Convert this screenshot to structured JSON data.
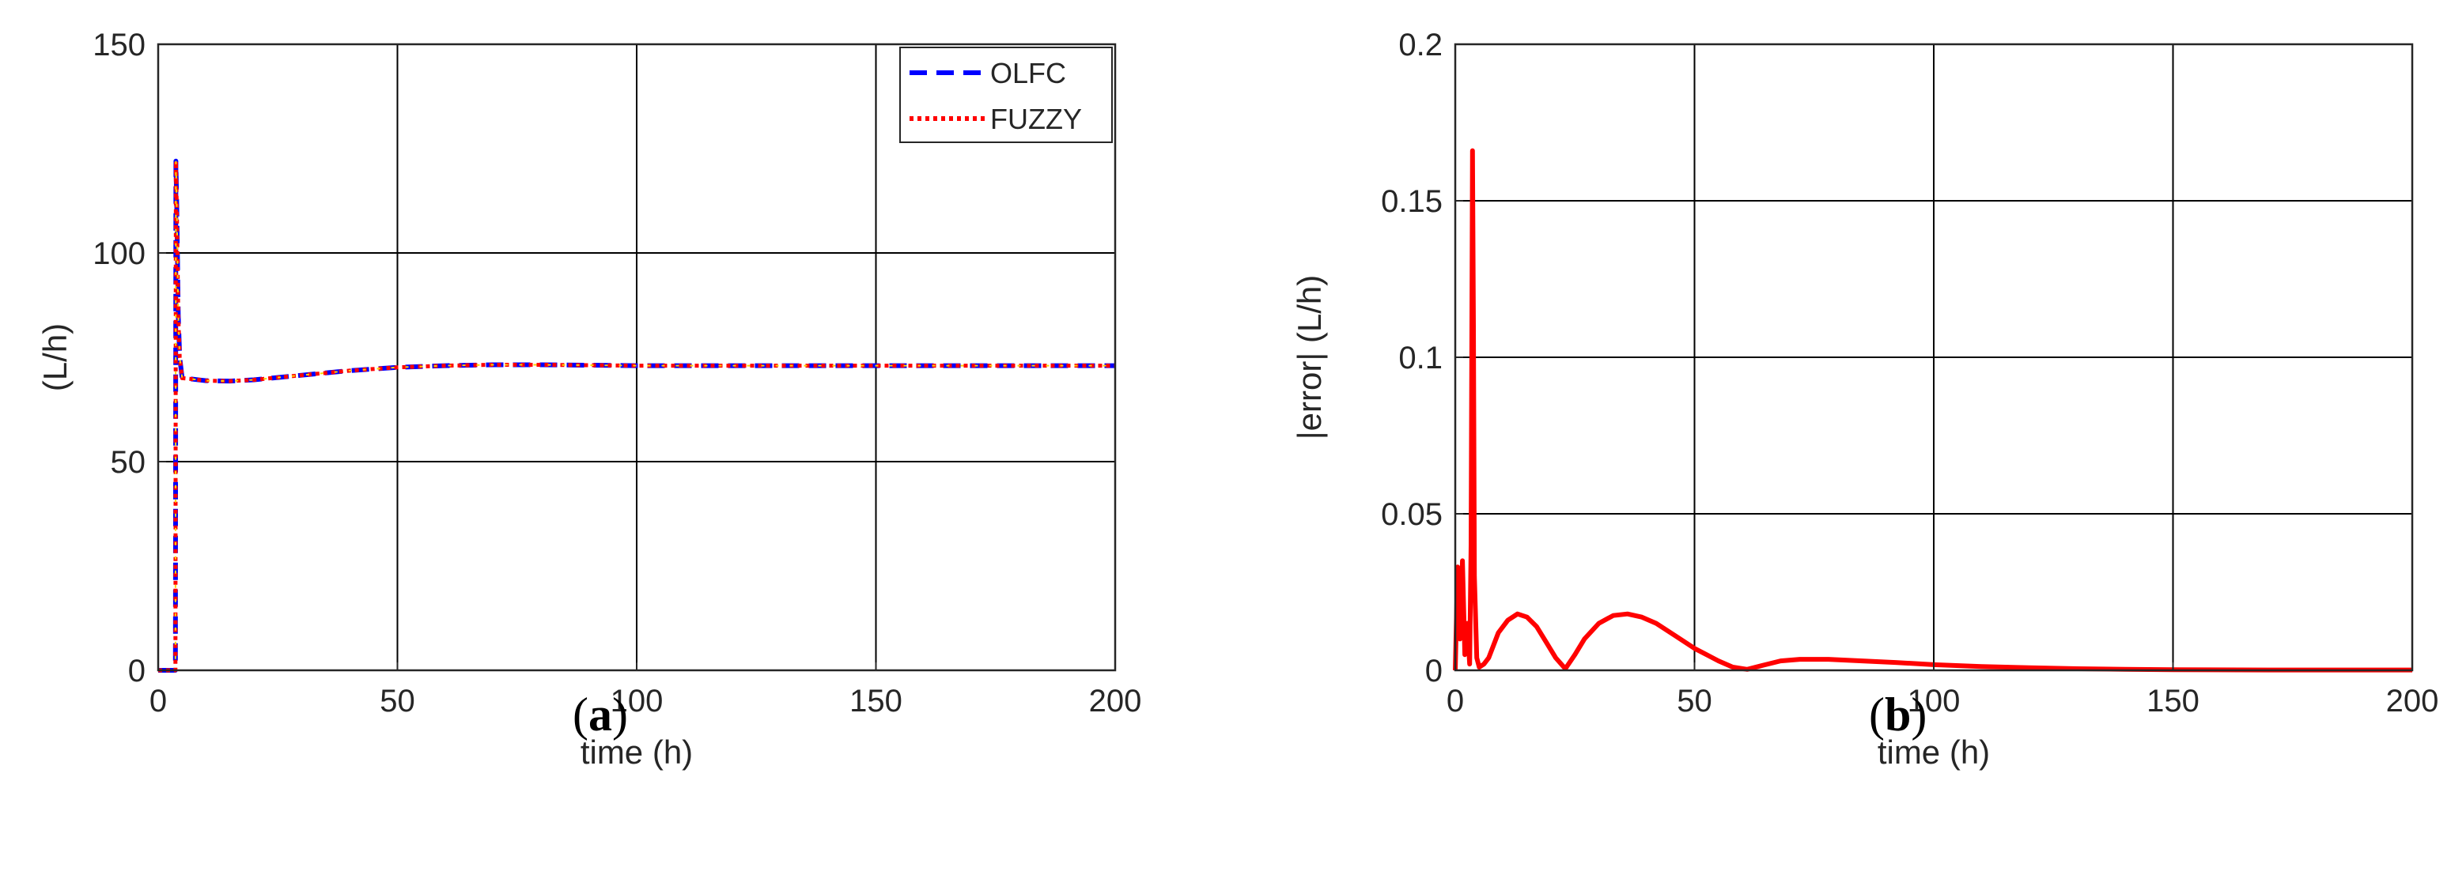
{
  "chart_data": [
    {
      "type": "line",
      "panel_label": "a",
      "xlabel": "time (h)",
      "ylabel": "(L/h)",
      "xlim": [
        0,
        200
      ],
      "ylim": [
        0,
        150
      ],
      "xticks": [
        0,
        50,
        100,
        150,
        200
      ],
      "yticks": [
        0,
        50,
        100,
        150
      ],
      "grid": true,
      "legend_position": "top-right",
      "series": [
        {
          "name": "OLFC",
          "color": "#0000ff",
          "style": "dashed",
          "x": [
            0,
            3.6,
            3.7,
            3.9,
            4.2,
            4.5,
            5,
            7,
            10,
            15,
            20,
            30,
            40,
            50,
            60,
            70,
            80,
            90,
            100,
            120,
            150,
            200
          ],
          "y": [
            0,
            0,
            122,
            110,
            85,
            75,
            70,
            69.8,
            69.4,
            69.3,
            69.6,
            70.7,
            71.8,
            72.6,
            73,
            73.2,
            73.2,
            73.1,
            73,
            73,
            73,
            73
          ]
        },
        {
          "name": "FUZZY",
          "color": "#ff0000",
          "style": "dotted",
          "x": [
            0,
            3.6,
            3.7,
            3.9,
            4.2,
            4.5,
            5,
            7,
            10,
            15,
            20,
            30,
            40,
            50,
            60,
            70,
            80,
            90,
            100,
            120,
            150,
            200
          ],
          "y": [
            0,
            0,
            122,
            110,
            85,
            75,
            70,
            69.8,
            69.4,
            69.3,
            69.6,
            70.7,
            71.8,
            72.6,
            73,
            73.2,
            73.2,
            73.1,
            73,
            73,
            73,
            73
          ]
        }
      ]
    },
    {
      "type": "line",
      "panel_label": "b",
      "xlabel": "time (h)",
      "ylabel": "|error| (L/h)",
      "xlim": [
        0,
        200
      ],
      "ylim": [
        0,
        0.2
      ],
      "xticks": [
        0,
        50,
        100,
        150,
        200
      ],
      "yticks": [
        0,
        0.05,
        0.1,
        0.15,
        0.2
      ],
      "ytick_labels": [
        "0",
        "0.05",
        "0.1",
        "0.15",
        "0.2"
      ],
      "grid": true,
      "series": [
        {
          "color": "#ff0000",
          "x": [
            0,
            0.5,
            1,
            1.5,
            2,
            2.5,
            3,
            3.3,
            3.6,
            3.8,
            4,
            4.5,
            5,
            6,
            7,
            9,
            11,
            13,
            15,
            17,
            19,
            21,
            23,
            25,
            27,
            30,
            33,
            36,
            39,
            42,
            46,
            50,
            55,
            58,
            61,
            64,
            68,
            72,
            78,
            85,
            92,
            100,
            110,
            120,
            130,
            140,
            150,
            170,
            200
          ],
          "y": [
            0,
            0.033,
            0.01,
            0.035,
            0.005,
            0.015,
            0.002,
            0.04,
            0.166,
            0.11,
            0.03,
            0.004,
            0.001,
            0.002,
            0.004,
            0.012,
            0.016,
            0.018,
            0.017,
            0.014,
            0.009,
            0.004,
            0.0005,
            0.005,
            0.01,
            0.015,
            0.0175,
            0.018,
            0.017,
            0.015,
            0.011,
            0.007,
            0.003,
            0.001,
            0.0003,
            0.0015,
            0.003,
            0.0035,
            0.0035,
            0.003,
            0.0025,
            0.0018,
            0.0012,
            0.0008,
            0.0005,
            0.0003,
            0.0002,
            0.0001,
            0.0001
          ]
        }
      ]
    }
  ]
}
